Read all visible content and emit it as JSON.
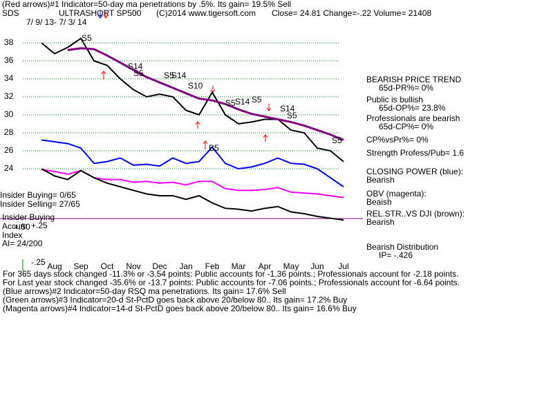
{
  "chart_data": {
    "type": "line",
    "title": "(Red arrows)#1 Indicator=50-day ma penetrations by .5%. Its gain= 19.5% Sell",
    "header": [
      "SDS",
      "ULTRASHORT SP500",
      "(C)2014 www.tigersoft.com",
      "Close=  24.81  Change=-.22 Volume= 21408"
    ],
    "date_range": "7/ 9/ 13- 7/ 3/ 14",
    "categories": [
      null,
      "Aug",
      null,
      "Sep",
      null,
      "Oct",
      null,
      "Nov",
      null,
      "Dec",
      null,
      "Jan",
      null,
      "Feb",
      null,
      "Mar",
      null,
      "Apr",
      null,
      "May",
      null,
      "Jun",
      null,
      "Jul"
    ],
    "series": [
      {
        "color": "#000000",
        "values": [
          38,
          36.8,
          37.5,
          38.5,
          36,
          35.5,
          34,
          32.8,
          32,
          32.3,
          32,
          30.5,
          30,
          32.5,
          30,
          29,
          29.2,
          29.5,
          29.5,
          28.3,
          28,
          26.3,
          26,
          24.8
        ]
      },
      {
        "color": "#800080",
        "values": [
          null,
          null,
          37.2,
          37.4,
          37.3,
          36.6,
          35.8,
          35,
          34.2,
          33.6,
          33,
          32.4,
          31.8,
          31.6,
          31.2,
          30.6,
          30.1,
          29.8,
          29.5,
          29.2,
          28.8,
          28.3,
          27.8,
          27.2
        ]
      },
      {
        "color": "#0000ff",
        "values": [
          27.2,
          27,
          26.8,
          26.3,
          24.6,
          24.8,
          25.2,
          24.4,
          24.5,
          24.3,
          25.2,
          24.6,
          24.8,
          26.4,
          24.6,
          24,
          24.2,
          24.6,
          25.2,
          24.6,
          24.5,
          24,
          23,
          22
        ]
      },
      {
        "color": "#ff00ff",
        "values": [
          23.9,
          23.7,
          23.4,
          23.8,
          23,
          22.8,
          22.8,
          22.5,
          22.6,
          22.4,
          22.5,
          22.2,
          22.6,
          22.6,
          21.8,
          21.6,
          21.6,
          21.7,
          21.9,
          21.4,
          21.3,
          21.2,
          21,
          20.8
        ]
      },
      {
        "color": "#000000",
        "values": [
          24,
          23.2,
          22.8,
          23.8,
          23,
          22.4,
          22,
          21.6,
          21.2,
          21,
          21,
          20.6,
          21,
          20.2,
          19.6,
          19.5,
          19.3,
          19.6,
          19.8,
          19.2,
          19,
          18.7,
          18.5,
          18.3
        ]
      }
    ],
    "ylim": [
      17.5,
      42
    ],
    "yticks": [
      24,
      26,
      28,
      30,
      32,
      34,
      36,
      38
    ],
    "grid": true,
    "signals": [
      "S5",
      "S14",
      "S5",
      "S5",
      "S14",
      "S10",
      "S5",
      "S14",
      "S5",
      "S14",
      "S5",
      "S5",
      "B5"
    ],
    "right_panel": [
      "BEARISH PRICE TREND",
      "65d-PR%= 0%",
      "Public is bullish",
      "65d-OP%= 23.8%",
      "Professionals are bearish",
      "65d-CP%= 0%",
      "CP%vsPr%=  0%",
      "Strength Profess/Pub= 1.6",
      "CLOSING POWER (blue):",
      "Bearish",
      "OBV (magenta):",
      "Beaish",
      "REL.STR..VS DJI (brown):",
      "Bearish",
      "Bearish Distribution",
      "IP= -.426"
    ],
    "insider": [
      "Insider Buying= 0/65",
      "Insider Selling= 27/65",
      "Insider Buying"
    ],
    "accum": [
      "Accum",
      "Index",
      "AI= 24/200"
    ],
    "accum_ticks": [
      "+.50",
      "+.25",
      "-.25"
    ],
    "footer": [
      "For 365 days stock changed -11.3% or -3.54 points:  Public accounts for -1.36 points.;  Professionals account for -2.18 points.",
      "For Last year stock changed -35.6% or -13.7 points:  Public accounts for -7.06 points.;  Professionals account for -6.64 points.",
      "(Blue arrows)#2 Indicator=50-day RSQ ma penetrations. Its gain= 17.6% Sell",
      "(Green arrows)#3 Indicator=20-d St-PctD goes back above 20/below 80.. Its gain= 17.2% Buy",
      "(Magenta arrows)#4 Indicator=14-d St-PctD goes back above 20/below 80.. Its gain= 16.6% Buy"
    ]
  }
}
